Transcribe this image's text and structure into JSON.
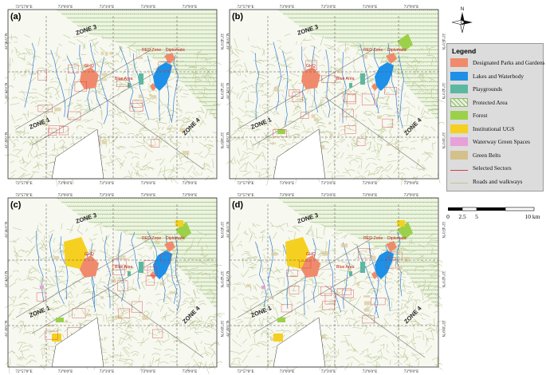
{
  "panels": [
    {
      "label": "(a)",
      "zone_labels": [
        "ZONE 3",
        "ZONE 1",
        "ZONE 4"
      ],
      "place_labels": [
        "RED Zone",
        "Diplomatic",
        "Blue Area",
        "GHQ"
      ]
    },
    {
      "label": "(b)",
      "zone_labels": [
        "ZONE 3",
        "ZONE 1",
        "ZONE 4"
      ],
      "place_labels": [
        "RED Zone",
        "Diplomatic",
        "Blue Area",
        "GHQ"
      ]
    },
    {
      "label": "(c)",
      "zone_labels": [
        "ZONE 3",
        "ZONE 1",
        "ZONE 4"
      ],
      "place_labels": [
        "RED Zone",
        "Diplomatic",
        "Blue Area",
        "GHQ"
      ]
    },
    {
      "label": "(d)",
      "zone_labels": [
        "ZONE 3",
        "ZONE 1",
        "ZONE 4"
      ],
      "place_labels": [
        "RED Zone",
        "Diplomatic",
        "Blue Area",
        "GHQ"
      ]
    }
  ],
  "coords": {
    "top_a": [
      "72°57'0\"E",
      "73°0'0\"E",
      "73°3'0\"E",
      "73°6'0\"E",
      "73°9'0\"E"
    ],
    "bottom_a": [
      "72°57'0\"E",
      "73°0'0\"E",
      "73°3'0\"E",
      "73°6'0\"E",
      "73°9'0\"E"
    ],
    "top_c": [
      "72°57'0\"E",
      "73°0'0\"E",
      "73°3'0\"E",
      "73°6'0\"E",
      "73°9'0\"E"
    ],
    "bottom_c": [
      "72°57'0\"E",
      "73°0'0\"E",
      "73°3'0\"E",
      "73°6'0\"E",
      "73°9'0\"E"
    ],
    "lat": [
      "33°45'0\"N",
      "33°42'0\"N",
      "33°39'0\"N"
    ]
  },
  "legend": {
    "title": "Legend",
    "items": [
      {
        "label": "Designated Parks and Gardens",
        "color": "#f08a6c"
      },
      {
        "label": "Lakes and Waterbody",
        "color": "#1e90e8"
      },
      {
        "label": "Playgrounds",
        "color": "#5cb8a0"
      },
      {
        "label": "Protected Area",
        "color": "#e6f0d8"
      },
      {
        "label": "Forest",
        "color": "#9bd14a"
      },
      {
        "label": "Institutional UGS",
        "color": "#f5d020"
      },
      {
        "label": "Waterway Green Spaces",
        "color": "#e8a0d8"
      },
      {
        "label": "Green Belts",
        "color": "#d4c08a"
      },
      {
        "label": "Selected Sectors",
        "color": "#d04040"
      },
      {
        "label": "Roads and walkways",
        "color": "#b8c890"
      }
    ]
  },
  "scale": {
    "ticks": [
      "0",
      "2.5",
      "5",
      "10 km"
    ]
  },
  "north_label": "N"
}
